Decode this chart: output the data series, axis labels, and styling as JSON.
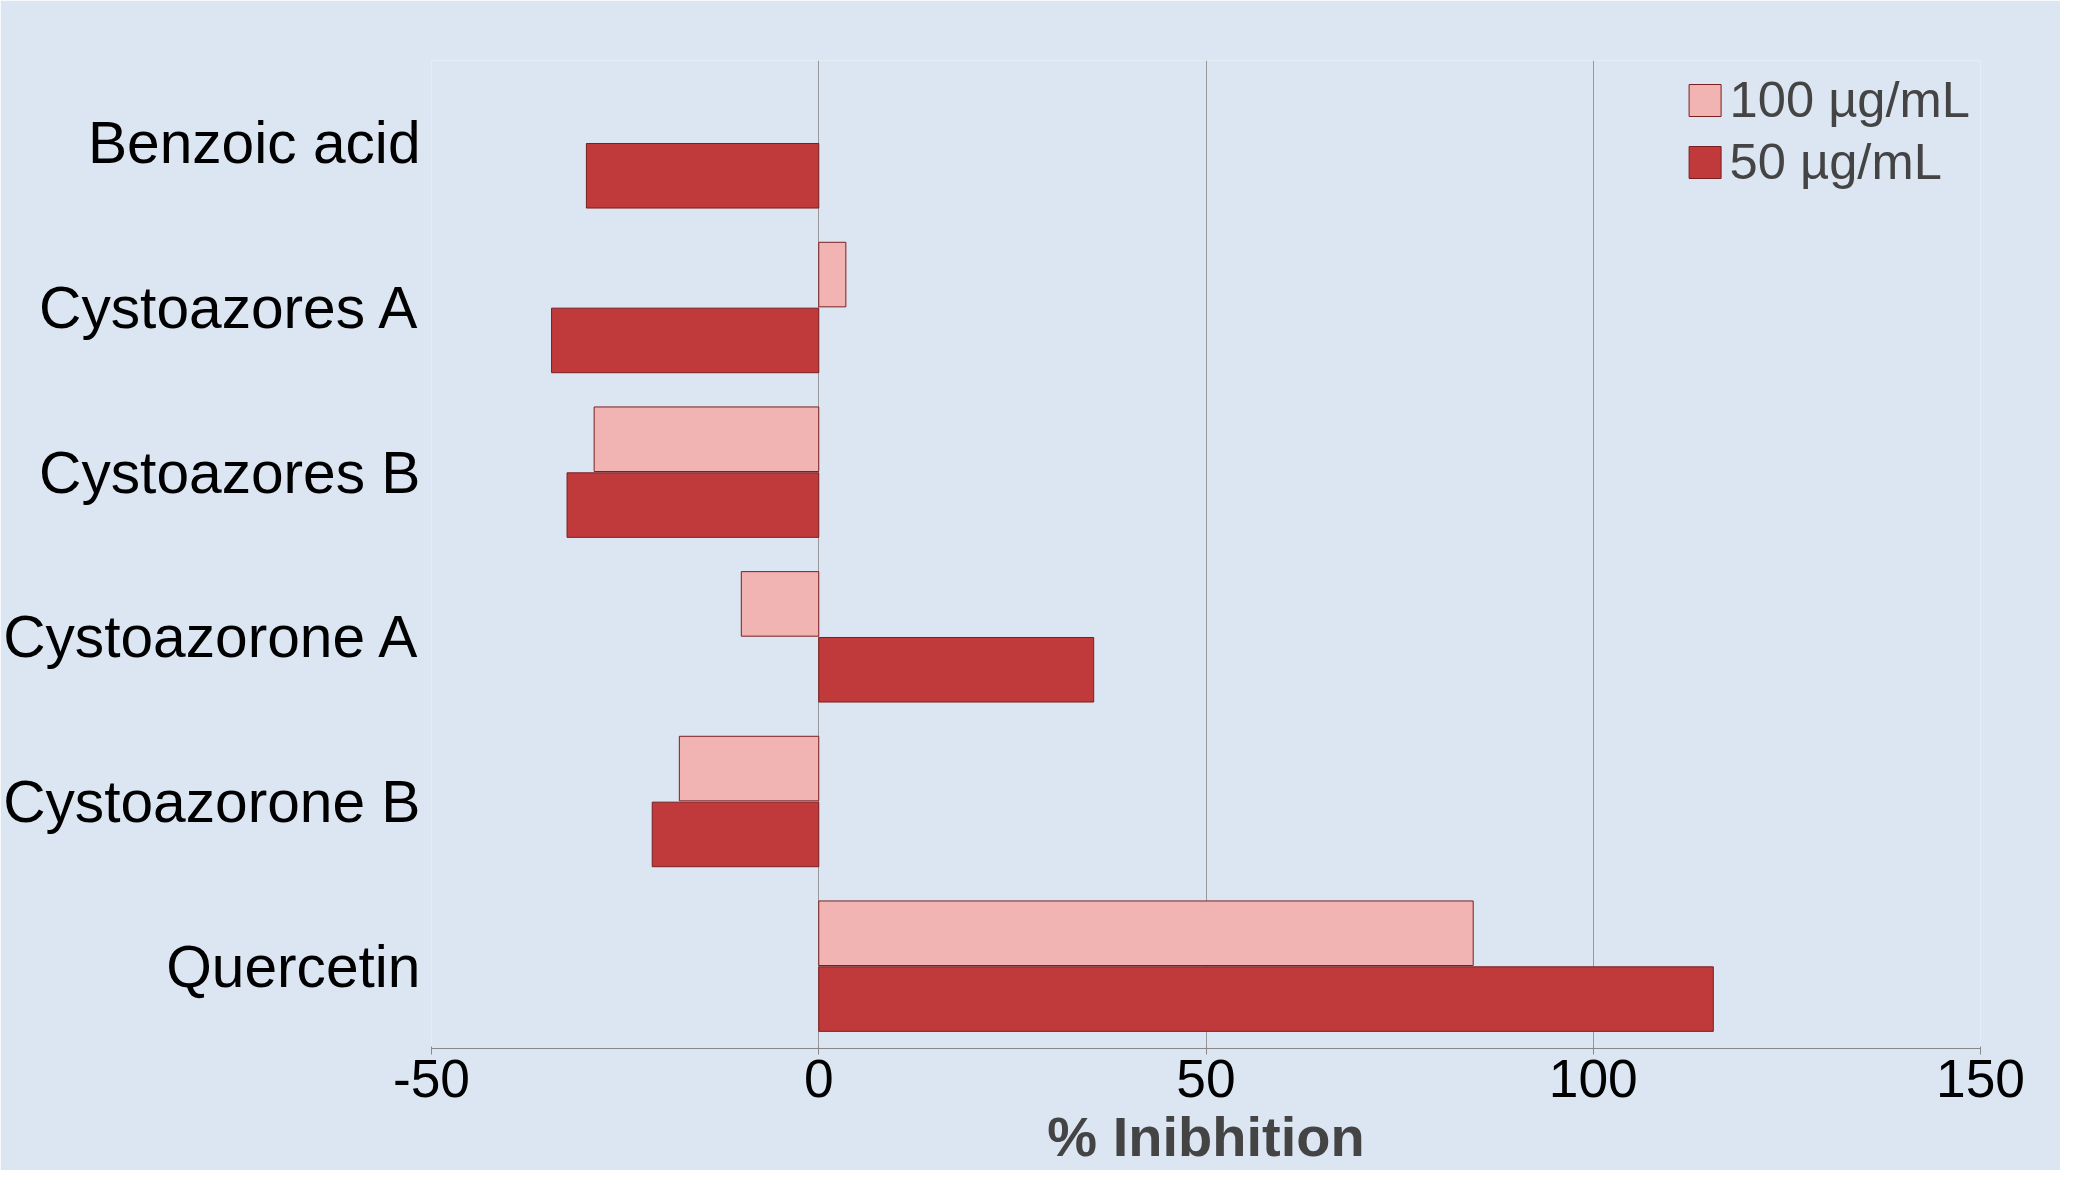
{
  "chart_data": {
    "type": "bar",
    "orientation": "horizontal",
    "xlabel": "% Inibhition",
    "categories": [
      "Benzoic acid",
      "Cystoazores A",
      "Cystoazores B",
      "Cystoazorone A",
      "Cystoazorone B",
      "Quercetin"
    ],
    "series": [
      {
        "name": "100 µg/mL",
        "color": "#f2b3b3",
        "values": [
          null,
          3.5,
          -29,
          -10,
          -18,
          84.5
        ]
      },
      {
        "name": "50 µg/mL",
        "color": "#c0393b",
        "values": [
          -30,
          -34.5,
          -32.5,
          35.5,
          -21.5,
          115.5
        ]
      }
    ],
    "xlim": [
      -50,
      150
    ],
    "xticks": [
      -50,
      0,
      50,
      100,
      150
    ],
    "grid": "x",
    "legend": "top right"
  }
}
